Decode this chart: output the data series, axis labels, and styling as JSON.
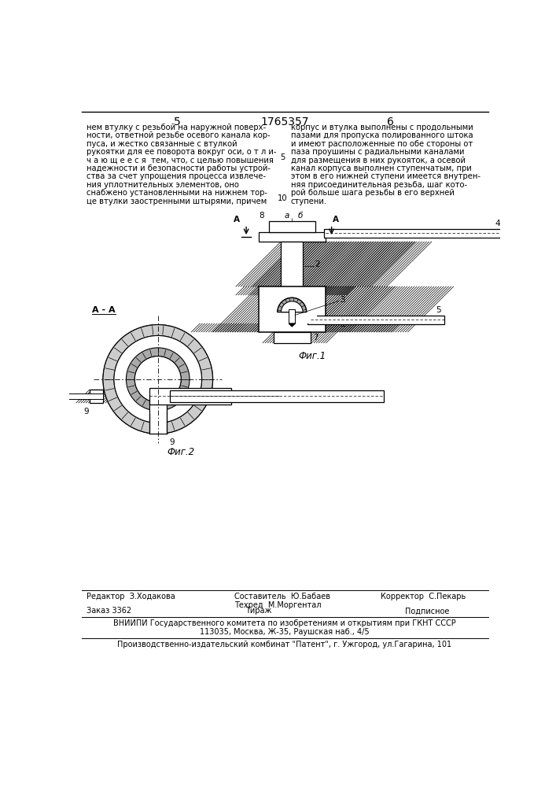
{
  "page_width": 7.07,
  "page_height": 10.0,
  "bg_color": "#ffffff",
  "header_num_left": "5",
  "header_patent": "1765357",
  "header_num_right": "6",
  "text_col1": "нем втулку с резьбой на наружной поверх-\nности, ответной резьбе осевого канала кор-\nпуса, и жестко связанные с втулкой\nрукоятки для ее поворота вокруг оси, о т л и-\nч а ю щ е е с я  тем, что, с целью повышения\nнадежности и безопасности работы устрой-\nства за счет упрощения процесса извлече-\nния уплотнительных элементов, оно\nснабжено установленными на нижнем тор-\nце втулки заостренными штырями, причем",
  "text_col2": "корпус и втулка выполнены с продольными\nпазами для пропуска полированного штока\nи имеют расположенные по обе стороны от\nпаза проушины с радиальными каналами\nдля размещения в них рукояток, а осевой\nканал корпуса выполнен ступенчатым, при\nэтом в его нижней ступени имеется внутрен-\nняя присоединительная резьба, шаг кото-\nрой больше шага резьбы в его верхней\nступени.",
  "footer1_left": "Редактор  З.Ходакова",
  "footer1_center_top": "Составитель  Ю.Бабаев",
  "footer1_center_bot": "Техред  М.Моргентал",
  "footer1_right": "Корректор  С.Пекарь",
  "footer2_left": "Заказ 3362",
  "footer2_center": "Тираж",
  "footer2_right": "Подписное",
  "footer3": "ВНИИПИ Государственного комитета по изобретениям и открытиям при ГКНТ СССР",
  "footer4": "113035, Москва, Ж-35, Раушская наб., 4/5",
  "footer5": "Производственно-издательский комбинат \"Патент\", г. Ужгород, ул.Гагарина, 101",
  "fig1_label": "Фиг.1",
  "fig2_label": "Фиг.2",
  "section_label": "А - А"
}
